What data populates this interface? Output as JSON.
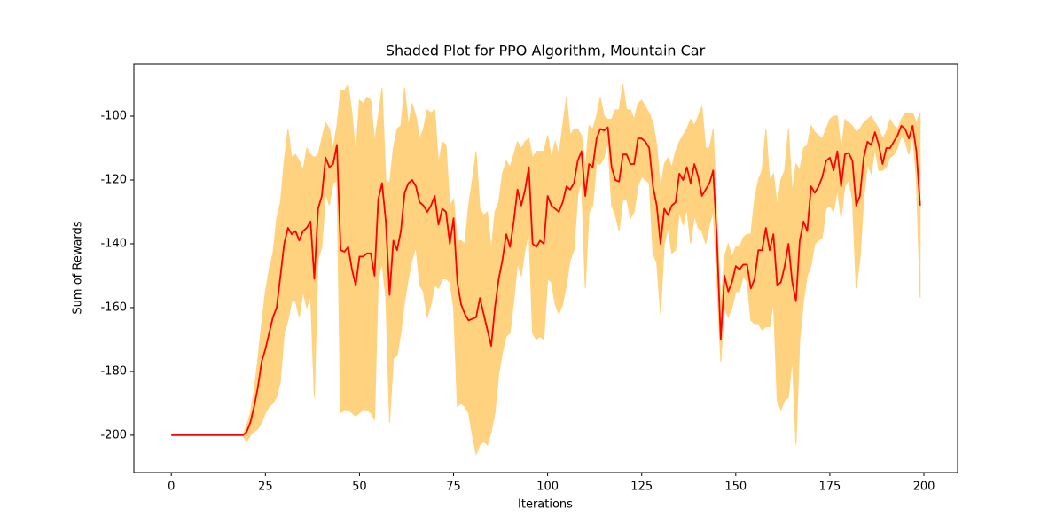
{
  "chart_data": {
    "type": "line",
    "title": "Shaded Plot for PPO Algorithm, Mountain Car",
    "xlabel": "Iterations",
    "ylabel": "Sum of Rewards",
    "xlim": [
      -9.95,
      208.95
    ],
    "ylim": [
      -211.7,
      -83.6
    ],
    "xticks": [
      0,
      25,
      50,
      75,
      100,
      125,
      150,
      175,
      200
    ],
    "yticks": [
      -200,
      -180,
      -160,
      -140,
      -120,
      -100
    ],
    "x": [
      0,
      1,
      2,
      3,
      4,
      5,
      6,
      7,
      8,
      9,
      10,
      11,
      12,
      13,
      14,
      15,
      16,
      17,
      18,
      19,
      20,
      21,
      22,
      23,
      24,
      25,
      26,
      27,
      28,
      29,
      30,
      31,
      32,
      33,
      34,
      35,
      36,
      37,
      38,
      39,
      40,
      41,
      42,
      43,
      44,
      45,
      46,
      47,
      48,
      49,
      50,
      51,
      52,
      53,
      54,
      55,
      56,
      57,
      58,
      59,
      60,
      61,
      62,
      63,
      64,
      65,
      66,
      67,
      68,
      69,
      70,
      71,
      72,
      73,
      74,
      75,
      76,
      77,
      78,
      79,
      80,
      81,
      82,
      83,
      84,
      85,
      86,
      87,
      88,
      89,
      90,
      91,
      92,
      93,
      94,
      95,
      96,
      97,
      98,
      99,
      100,
      101,
      102,
      103,
      104,
      105,
      106,
      107,
      108,
      109,
      110,
      111,
      112,
      113,
      114,
      115,
      116,
      117,
      118,
      119,
      120,
      121,
      122,
      123,
      124,
      125,
      126,
      127,
      128,
      129,
      130,
      131,
      132,
      133,
      134,
      135,
      136,
      137,
      138,
      139,
      140,
      141,
      142,
      143,
      144,
      145,
      146,
      147,
      148,
      149,
      150,
      151,
      152,
      153,
      154,
      155,
      156,
      157,
      158,
      159,
      160,
      161,
      162,
      163,
      164,
      165,
      166,
      167,
      168,
      169,
      170,
      171,
      172,
      173,
      174,
      175,
      176,
      177,
      178,
      179,
      180,
      181,
      182,
      183,
      184,
      185,
      186,
      187,
      188,
      189,
      190,
      191,
      192,
      193,
      194,
      195,
      196,
      197,
      198,
      199
    ],
    "series": [
      {
        "color": "#ff0000",
        "values": [
          -200,
          -200,
          -200,
          -200,
          -200,
          -200,
          -200,
          -200,
          -200,
          -200,
          -200,
          -200,
          -200,
          -200,
          -200,
          -200,
          -200,
          -200,
          -200,
          -200,
          -199,
          -196,
          -191,
          -185,
          -177,
          -173,
          -168,
          -163,
          -160,
          -150,
          -140,
          -135,
          -137,
          -136,
          -139,
          -136,
          -135,
          -133,
          -151,
          -129,
          -125,
          -113,
          -116,
          -115,
          -109,
          -142,
          -142.5,
          -141,
          -148,
          -153,
          -144,
          -144,
          -143,
          -143,
          -150,
          -126,
          -121,
          -133,
          -156,
          -139,
          -142,
          -136,
          -124,
          -121,
          -120,
          -122,
          -127,
          -128,
          -130,
          -128,
          -125,
          -134,
          -129,
          -130,
          -140,
          -132,
          -152,
          -159,
          -162,
          -164,
          -163.5,
          -163,
          -157,
          -162,
          -167,
          -172,
          -160,
          -151,
          -145,
          -137,
          -141,
          -133,
          -123,
          -128,
          -123,
          -116,
          -140,
          -141,
          -139,
          -140,
          -125,
          -128,
          -129,
          -130,
          -127,
          -122,
          -123,
          -121,
          -114,
          -111,
          -125,
          -115,
          -116,
          -107,
          -104,
          -104.5,
          -103.5,
          -116,
          -120,
          -120.5,
          -112,
          -112,
          -115,
          -115,
          -107,
          -107,
          -108,
          -110,
          -122,
          -128,
          -140,
          -129,
          -131,
          -128,
          -127,
          -118,
          -120,
          -116,
          -121,
          -115,
          -119,
          -125,
          -123,
          -121,
          -117,
          -139,
          -170,
          -150,
          -155,
          -152,
          -147,
          -148,
          -146.5,
          -146.5,
          -154,
          -151,
          -142,
          -142,
          -135,
          -142,
          -137,
          -153,
          -152,
          -147,
          -140,
          -152,
          -158,
          -139,
          -133,
          -136,
          -122,
          -124,
          -122,
          -119,
          -114,
          -113,
          -117,
          -111,
          -122,
          -112,
          -111.5,
          -114,
          -128,
          -125,
          -113,
          -108,
          -109,
          -105,
          -109,
          -115,
          -110,
          -110,
          -108,
          -106,
          -103,
          -104,
          -107,
          -103,
          -111,
          -128
        ]
      }
    ],
    "band": {
      "color": "#ffd27f",
      "upper": [
        -200,
        -200,
        -200,
        -200,
        -200,
        -200,
        -200,
        -200,
        -200,
        -200,
        -200,
        -200,
        -200,
        -200,
        -200,
        -200,
        -200,
        -200,
        -200,
        -200,
        -197,
        -193,
        -186,
        -176,
        -165,
        -155,
        -148,
        -143,
        -132,
        -127,
        -114,
        -104,
        -113,
        -112,
        -114,
        -117,
        -110,
        -112,
        -113,
        -112,
        -107,
        -102,
        -104,
        -110,
        -103,
        -92,
        -92,
        -90,
        -99,
        -112,
        -95,
        -96,
        -94,
        -95,
        -108,
        -100,
        -91,
        -120,
        -121,
        -110,
        -104,
        -103,
        -91,
        -103,
        -96,
        -100,
        -107,
        -104,
        -98,
        -99,
        -98,
        -115,
        -108,
        -109,
        -128,
        -126,
        -139,
        -139,
        -140,
        -128,
        -120,
        -111,
        -129,
        -131,
        -130,
        -142,
        -130,
        -127,
        -118,
        -114,
        -116,
        -112,
        -108,
        -110,
        -108,
        -107,
        -113,
        -111,
        -111,
        -111,
        -106,
        -113,
        -108,
        -112,
        -103,
        -94,
        -106,
        -104,
        -104,
        -106,
        -116,
        -103,
        -104,
        -100,
        -94,
        -100,
        -101,
        -101,
        -98,
        -98,
        -90,
        -98,
        -98,
        -101,
        -96,
        -95,
        -97,
        -99,
        -102,
        -109,
        -123,
        -115,
        -113,
        -116,
        -111,
        -108,
        -106,
        -104,
        -101,
        -103,
        -100,
        -97,
        -110,
        -110,
        -104,
        -131,
        -160,
        -144,
        -140,
        -144,
        -141,
        -141,
        -138,
        -137,
        -137,
        -126,
        -120,
        -117,
        -104,
        -120,
        -118,
        -128,
        -120,
        -117,
        -104,
        -124,
        -115,
        -117,
        -110,
        -109,
        -103,
        -105,
        -106,
        -107,
        -104,
        -101,
        -100,
        -100,
        -111,
        -101,
        -102,
        -103,
        -105,
        -104,
        -102,
        -101,
        -100,
        -102,
        -104,
        -107,
        -105,
        -101,
        -103,
        -104,
        -101,
        -99,
        -99,
        -99,
        -102,
        -99
      ],
      "lower": [
        -200,
        -200,
        -200,
        -200,
        -200,
        -200,
        -200,
        -200,
        -200,
        -200,
        -200,
        -200,
        -200,
        -200,
        -200,
        -200,
        -200,
        -200,
        -200,
        -200,
        -202,
        -200,
        -199,
        -198,
        -196,
        -193,
        -191,
        -190,
        -188,
        -183,
        -168,
        -164,
        -158,
        -158,
        -163,
        -155,
        -160,
        -156,
        -188,
        -145,
        -141,
        -124,
        -128,
        -121,
        -120,
        -193,
        -192,
        -192,
        -193,
        -194,
        -193,
        -192,
        -192,
        -193,
        -195,
        -151,
        -146,
        -157,
        -196,
        -176,
        -175,
        -168,
        -158,
        -151,
        -145,
        -141,
        -153,
        -155,
        -163,
        -159,
        -153,
        -154,
        -151,
        -151,
        -152,
        -160,
        -191,
        -190,
        -191,
        -193,
        -200,
        -206,
        -203,
        -202,
        -203,
        -199,
        -193,
        -181,
        -174,
        -169,
        -168,
        -158,
        -146,
        -150,
        -142,
        -136,
        -168,
        -170,
        -169,
        -170,
        -151,
        -152,
        -159,
        -162,
        -159,
        -153,
        -145,
        -142,
        -125,
        -120,
        -154,
        -130,
        -128,
        -115,
        -115,
        -113,
        -108,
        -128,
        -131,
        -136,
        -126,
        -126,
        -132,
        -130,
        -122,
        -119,
        -120,
        -121,
        -143,
        -146,
        -162,
        -140,
        -135,
        -143,
        -142,
        -130,
        -134,
        -129,
        -140,
        -131,
        -135,
        -136,
        -140,
        -134,
        -130,
        -152,
        -177,
        -160,
        -163,
        -160,
        -155,
        -155,
        -150,
        -152,
        -164,
        -165,
        -165,
        -167,
        -166,
        -166,
        -158,
        -189,
        -192,
        -189,
        -188,
        -176,
        -203,
        -170,
        -158,
        -150,
        -147,
        -140,
        -139,
        -138,
        -129,
        -128,
        -130,
        -123,
        -132,
        -122,
        -120,
        -126,
        -154,
        -145,
        -126,
        -115,
        -118,
        -110,
        -117,
        -117,
        -116,
        -113,
        -112,
        -110,
        -106,
        -108,
        -112,
        -106,
        -120,
        -157
      ]
    }
  }
}
